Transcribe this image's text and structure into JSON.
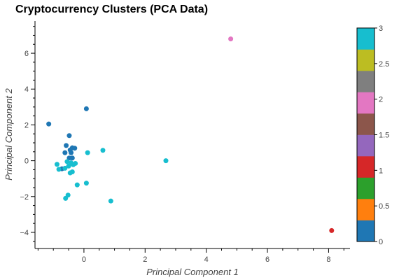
{
  "chart_data": {
    "type": "scatter",
    "title": "Cryptocurrency Clusters (PCA Data)",
    "xlabel": "Principal Component 1",
    "ylabel": "Principal Component 2",
    "xlim": [
      -1.6,
      8.7
    ],
    "ylim": [
      -4.9,
      7.8
    ],
    "x_ticks": [
      0,
      2,
      4,
      6,
      8
    ],
    "y_ticks": [
      -4,
      -2,
      0,
      2,
      4,
      6
    ],
    "grid": false,
    "colorbar": {
      "field": "cluster",
      "range": [
        0,
        3
      ],
      "ticks": [
        {
          "value": 0,
          "label": "0"
        },
        {
          "value": 0.5,
          "label": "0.5"
        },
        {
          "value": 1,
          "label": "1"
        },
        {
          "value": 1.5,
          "label": "1.5"
        },
        {
          "value": 2,
          "label": "2"
        },
        {
          "value": 2.5,
          "label": "2.5"
        },
        {
          "value": 3,
          "label": "3"
        }
      ],
      "palette": [
        "#1f77b4",
        "#ff7f0e",
        "#2ca02c",
        "#d62728",
        "#9467bd",
        "#8c564b",
        "#e377c2",
        "#7f7f7f",
        "#bcbd22",
        "#17becf"
      ]
    },
    "points": [
      {
        "x": -1.15,
        "y": 2.05,
        "cluster": 0
      },
      {
        "x": 0.08,
        "y": 2.9,
        "cluster": 0
      },
      {
        "x": -0.48,
        "y": 1.4,
        "cluster": 0
      },
      {
        "x": -0.58,
        "y": 0.85,
        "cluster": 0
      },
      {
        "x": -0.45,
        "y": 0.6,
        "cluster": 0
      },
      {
        "x": -0.38,
        "y": 0.72,
        "cluster": 0
      },
      {
        "x": -0.3,
        "y": 0.7,
        "cluster": 0
      },
      {
        "x": -0.62,
        "y": 0.45,
        "cluster": 0
      },
      {
        "x": -0.42,
        "y": 0.45,
        "cluster": 0
      },
      {
        "x": -0.48,
        "y": 0.15,
        "cluster": 0
      },
      {
        "x": -0.38,
        "y": 0.15,
        "cluster": 0
      },
      {
        "x": -0.72,
        "y": -0.45,
        "cluster": 0
      },
      {
        "x": 8.1,
        "y": -3.9,
        "cluster": 1
      },
      {
        "x": 4.8,
        "y": 6.8,
        "cluster": 2
      },
      {
        "x": 2.68,
        "y": 0.0,
        "cluster": 3
      },
      {
        "x": 0.62,
        "y": 0.58,
        "cluster": 3
      },
      {
        "x": 0.12,
        "y": 0.45,
        "cluster": 3
      },
      {
        "x": -0.88,
        "y": -0.2,
        "cluster": 3
      },
      {
        "x": -0.82,
        "y": -0.48,
        "cluster": 3
      },
      {
        "x": -0.62,
        "y": -0.42,
        "cluster": 3
      },
      {
        "x": -0.55,
        "y": -0.05,
        "cluster": 3
      },
      {
        "x": -0.5,
        "y": -0.3,
        "cluster": 3
      },
      {
        "x": -0.42,
        "y": -0.12,
        "cluster": 3
      },
      {
        "x": -0.35,
        "y": -0.22,
        "cluster": 3
      },
      {
        "x": -0.28,
        "y": -0.15,
        "cluster": 3
      },
      {
        "x": -0.45,
        "y": -0.68,
        "cluster": 3
      },
      {
        "x": -0.38,
        "y": -0.62,
        "cluster": 3
      },
      {
        "x": -0.22,
        "y": -1.35,
        "cluster": 3
      },
      {
        "x": 0.08,
        "y": -1.25,
        "cluster": 3
      },
      {
        "x": -0.52,
        "y": -1.92,
        "cluster": 3
      },
      {
        "x": -0.6,
        "y": -2.1,
        "cluster": 3
      },
      {
        "x": 0.88,
        "y": -2.25,
        "cluster": 3
      }
    ]
  }
}
